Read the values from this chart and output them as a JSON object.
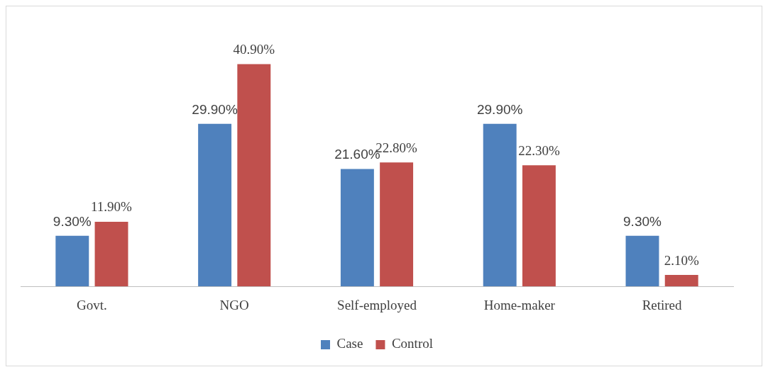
{
  "chart_data": {
    "type": "bar",
    "categories": [
      "Govt.",
      "NGO",
      "Self-employed",
      "Home-maker",
      "Retired"
    ],
    "series": [
      {
        "name": "Case",
        "color": "#4f81bd",
        "values": [
          9.3,
          29.9,
          21.6,
          29.9,
          9.3
        ],
        "value_labels": [
          "9.30%",
          "29.90%",
          "21.60%",
          "29.90%",
          "9.30%"
        ]
      },
      {
        "name": "Control",
        "color": "#c0504d",
        "values": [
          11.9,
          40.9,
          22.8,
          22.3,
          2.1
        ],
        "value_labels": [
          "11.90%",
          "40.90%",
          "22.80%",
          "22.30%",
          "2.10%"
        ]
      }
    ],
    "legend": "bottom",
    "grid": false
  }
}
